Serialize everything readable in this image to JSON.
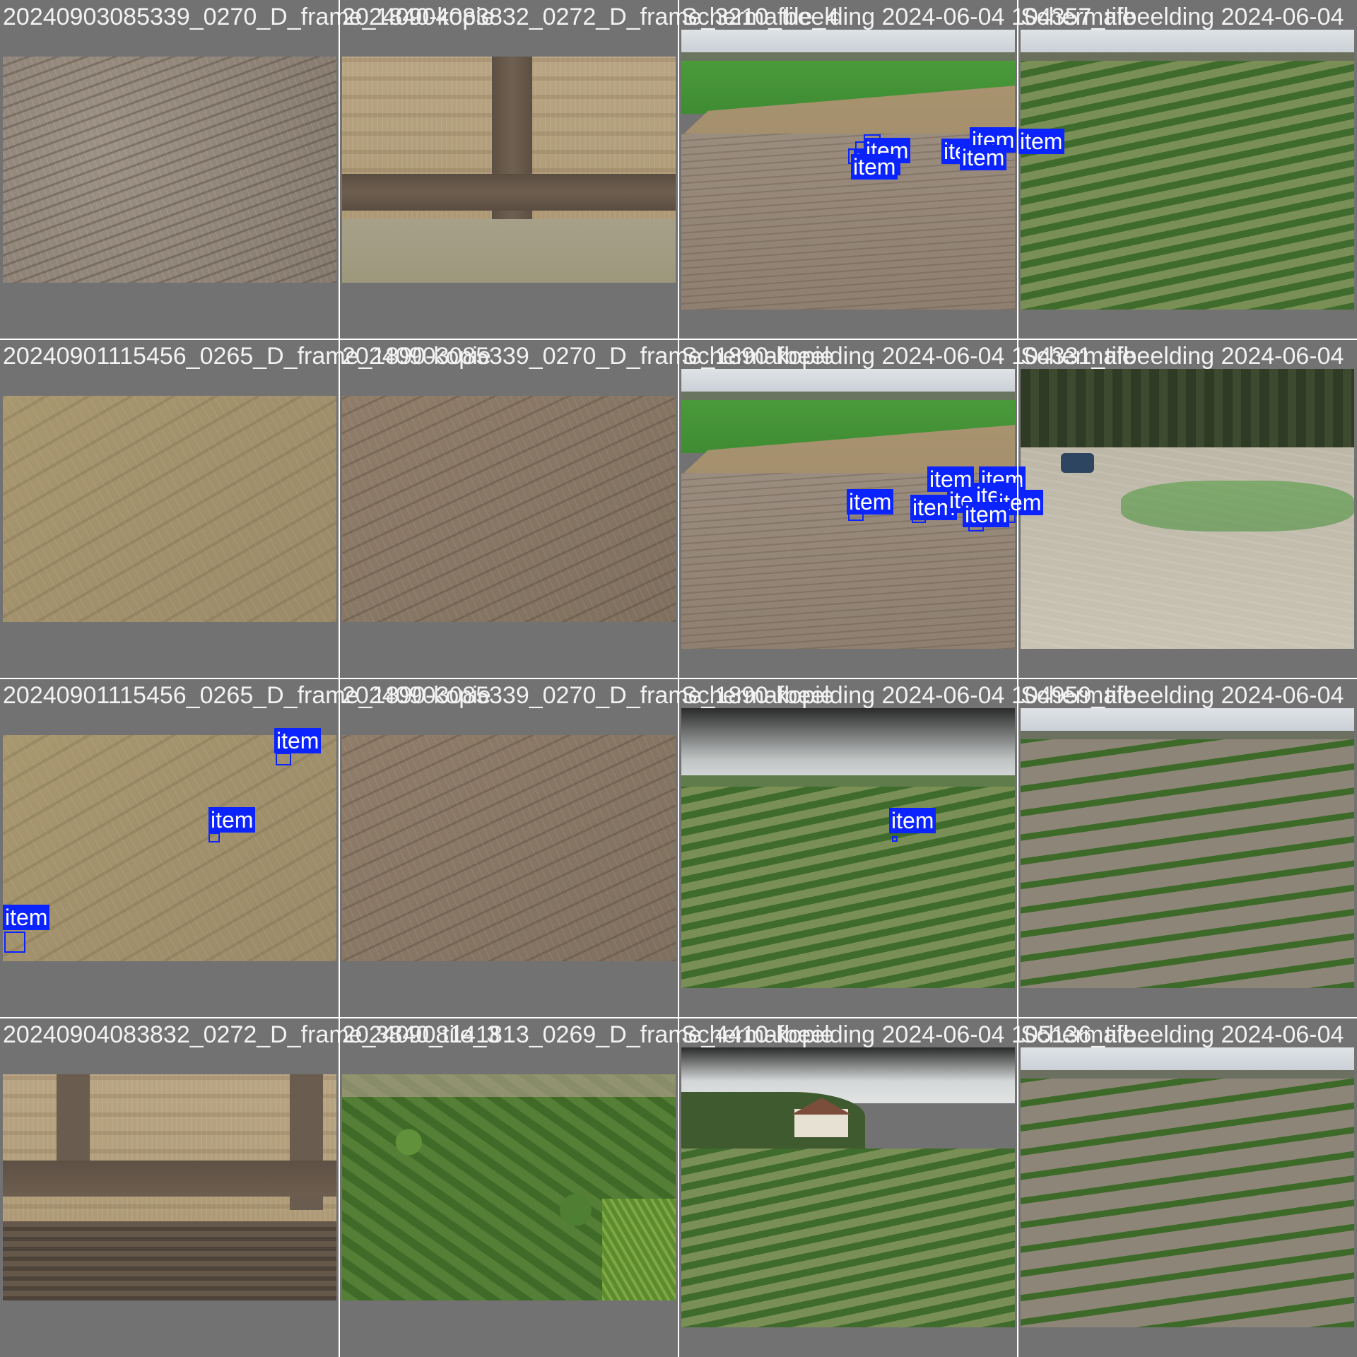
{
  "mosaic": {
    "tiles": [
      {
        "caption": "20240903085339_0270_D_frame_1840-kopie",
        "scene": "soil-grey",
        "detections": []
      },
      {
        "caption": "20240904083832_0272_D_frame_3210_tile_4",
        "scene": "stubble-tracks",
        "detections": []
      },
      {
        "caption": "Schermafbeelding 2024-06-04 104357_tile",
        "scene": "field-horizon",
        "detections": [
          {
            "label": "item"
          },
          {
            "label": "item"
          },
          {
            "label": "item"
          },
          {
            "label": "item"
          },
          {
            "label": "item"
          },
          {
            "label": "item"
          }
        ]
      },
      {
        "caption": "Schermafbeelding 2024-06-04",
        "scene": "crop-horizon",
        "detections": [
          {
            "label": "item"
          }
        ]
      },
      {
        "caption": "20240901115456_0265_D_frame_1890-kopie",
        "scene": "soil-tan",
        "detections": []
      },
      {
        "caption": "20240903085339_0270_D_frame_1890-kopie",
        "scene": "soil-brown",
        "detections": []
      },
      {
        "caption": "Schermafbeelding 2024-06-04 104331_tile",
        "scene": "field-horizon",
        "detections": [
          {
            "label": "item"
          },
          {
            "label": "item"
          },
          {
            "label": "item"
          },
          {
            "label": "item"
          },
          {
            "label": "item"
          },
          {
            "label": "item"
          },
          {
            "label": "item"
          },
          {
            "label": "item"
          }
        ]
      },
      {
        "caption": "Schermafbeelding 2024-06-04",
        "scene": "parking-lot",
        "detections": []
      },
      {
        "caption": "20240901115456_0265_D_frame_1890-kopie",
        "scene": "soil-tan",
        "detections": [
          {
            "label": "item"
          },
          {
            "label": "item"
          },
          {
            "label": "item"
          }
        ]
      },
      {
        "caption": "20240903085339_0270_D_frame_1890-kopie",
        "scene": "soil-brown",
        "detections": []
      },
      {
        "caption": "Schermafbeelding 2024-06-04 104959_tile",
        "scene": "crop-blurred",
        "detections": [
          {
            "label": "item"
          }
        ]
      },
      {
        "caption": "Schermafbeelding 2024-06-04",
        "scene": "crop-sparse",
        "detections": []
      },
      {
        "caption": "20240904083832_0272_D_frame_3840_tile_3",
        "scene": "stubble-corner",
        "detections": []
      },
      {
        "caption": "20240908141813_0269_D_frame_4410-kopie",
        "scene": "leafy",
        "detections": []
      },
      {
        "caption": "Schermafbeelding 2024-06-04 105136_tile",
        "scene": "crop-house",
        "detections": []
      },
      {
        "caption": "Schermafbeelding 2024-06-04",
        "scene": "crop-sparse",
        "detections": []
      }
    ]
  },
  "colors": {
    "background": "#727272",
    "detection_box": "#0b24ff",
    "label_text": "#ffffff",
    "caption_text": "#f2f2f2"
  }
}
